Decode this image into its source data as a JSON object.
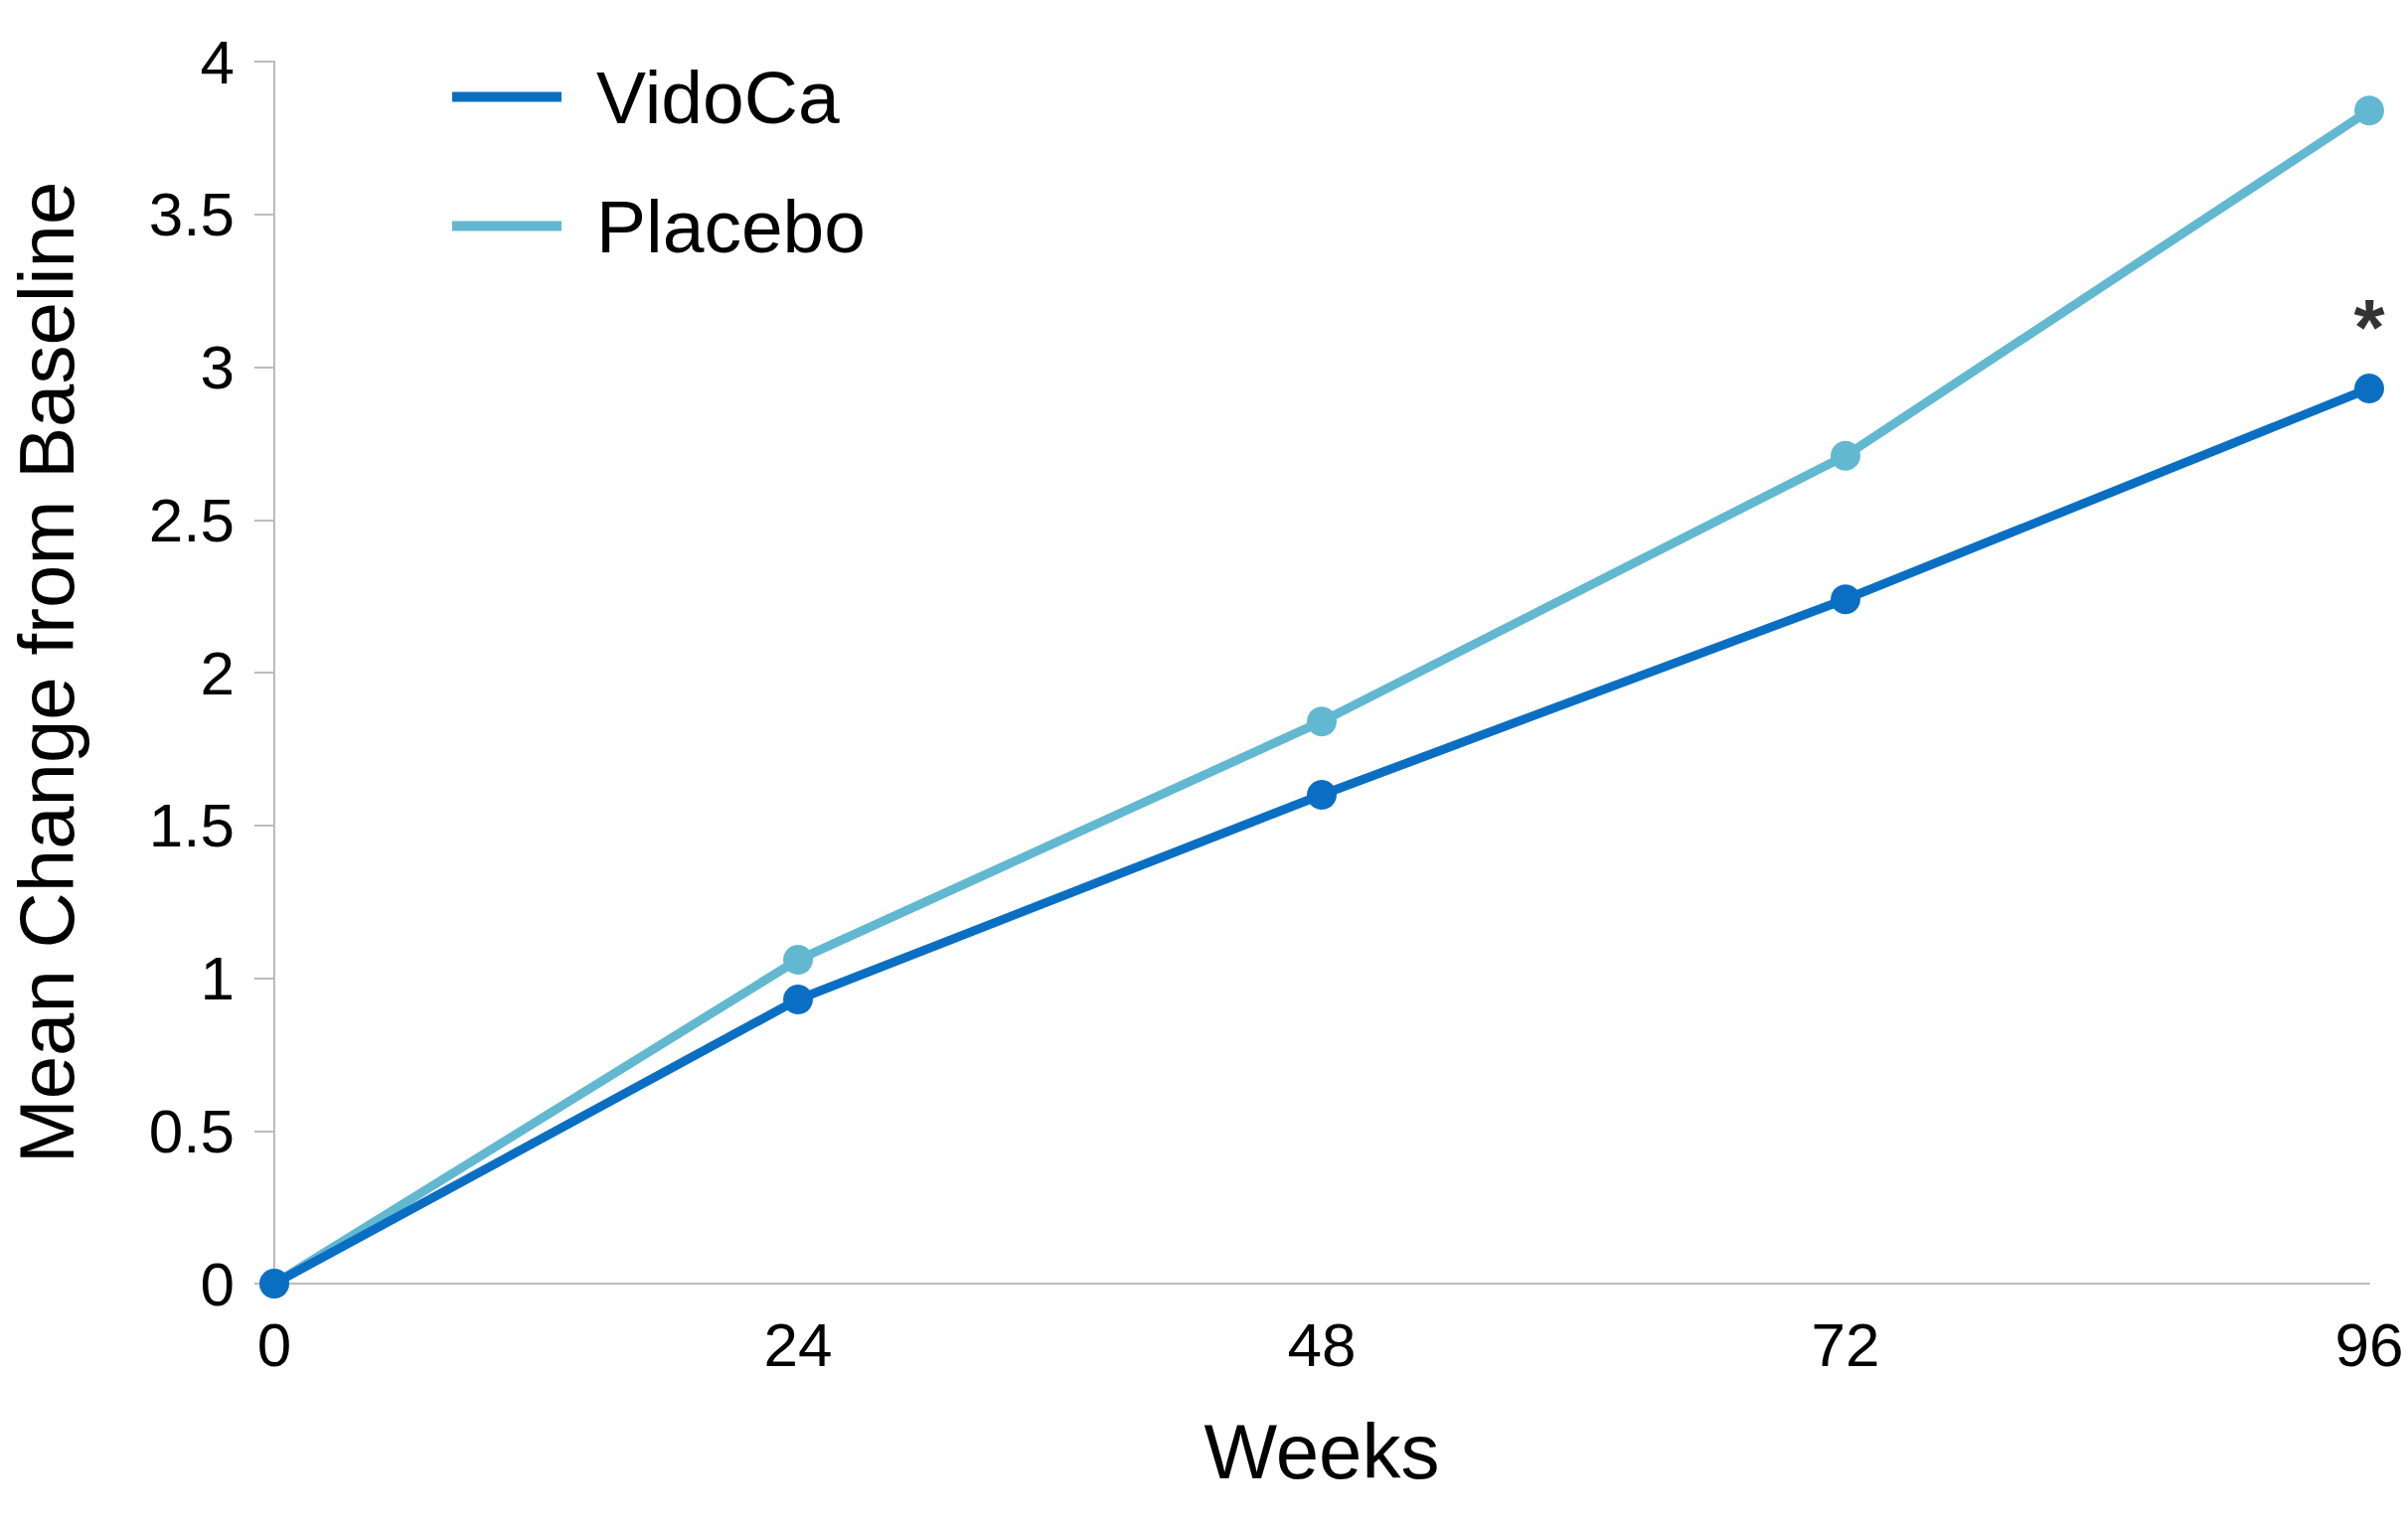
{
  "chart_data": {
    "type": "line",
    "xlabel": "Weeks",
    "ylabel": "Mean Change from Baseline",
    "x": [
      0,
      24,
      48,
      72,
      96
    ],
    "series": [
      {
        "name": "VidoCa",
        "color": "#0a6fc2",
        "values": [
          0,
          0.93,
          1.6,
          2.24,
          2.93
        ]
      },
      {
        "name": "Placebo",
        "color": "#62b8d0",
        "values": [
          0,
          1.06,
          1.84,
          2.71,
          3.84
        ]
      }
    ],
    "xlim": [
      0,
      96
    ],
    "xticks": [
      0,
      24,
      48,
      72,
      96
    ],
    "ylim": [
      0,
      4
    ],
    "yticks": [
      0,
      0.5,
      1,
      1.5,
      2,
      2.5,
      3,
      3.5,
      4
    ],
    "grid": false,
    "legend": "top left",
    "marker": "circle",
    "line_style": "solid",
    "annotations": [
      {
        "text": "*",
        "x": 96,
        "y": 2.93
      }
    ]
  }
}
